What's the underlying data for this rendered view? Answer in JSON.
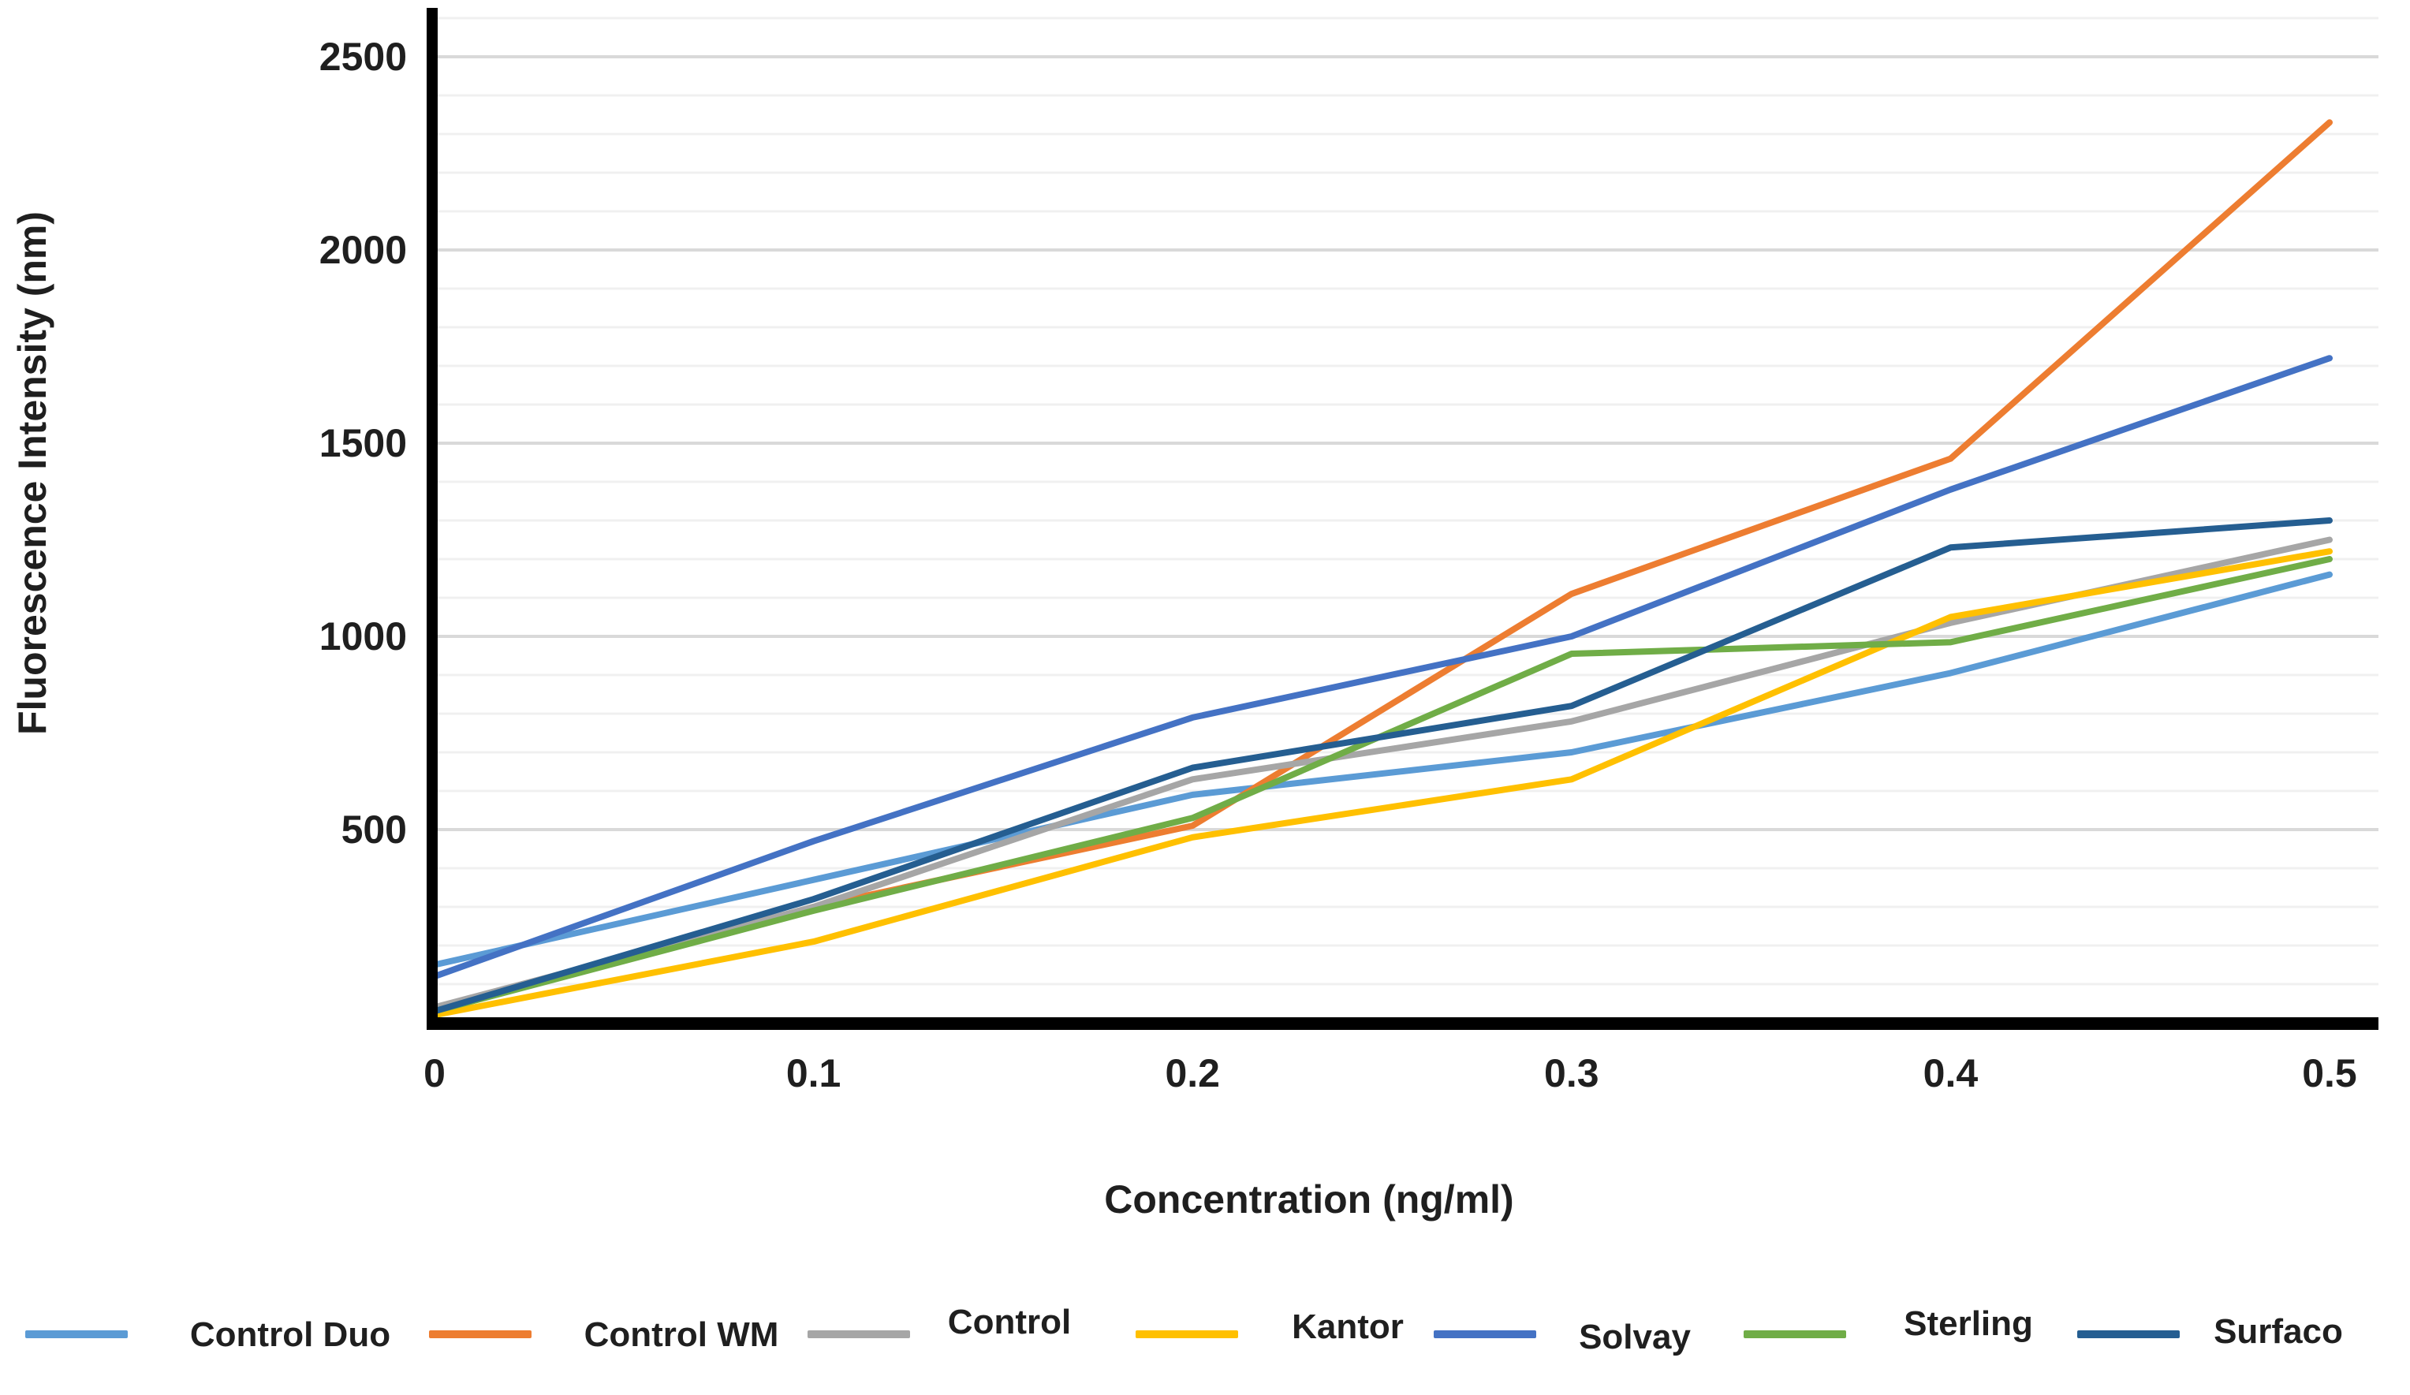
{
  "chart_data": {
    "type": "line",
    "title": "",
    "xlabel": "Concentration (ng/ml)",
    "ylabel": "Fluorescence Intensity (nm)",
    "x": [
      0,
      0.1,
      0.2,
      0.3,
      0.4,
      0.5
    ],
    "x_tick_labels": [
      "0",
      "0.1",
      "0.2",
      "0.3",
      "0.4",
      "0.5"
    ],
    "y_ticks": [
      500,
      1000,
      1500,
      2000,
      2500
    ],
    "y_tick_labels": [
      "500",
      "1000",
      "1500",
      "2000",
      "2500"
    ],
    "ylim": [
      0,
      2600
    ],
    "xlim": [
      0,
      0.5
    ],
    "grid": {
      "minor_step": 100,
      "major_step": 500,
      "minor_color": "#f0f0f0",
      "major_color": "#d9d9d9"
    },
    "axis_color": "#000000",
    "legend_position": "bottom",
    "series": [
      {
        "name": "Control Duo",
        "color": "#5B9BD5",
        "values": [
          150,
          370,
          590,
          700,
          905,
          1160
        ]
      },
      {
        "name": "Control WM",
        "color": "#ED7D31",
        "values": [
          30,
          300,
          510,
          1110,
          1460,
          2330
        ]
      },
      {
        "name": "Control",
        "color": "#A6A6A6",
        "values": [
          40,
          300,
          630,
          780,
          1035,
          1250
        ]
      },
      {
        "name": "Kantor",
        "color": "#FFC000",
        "values": [
          20,
          210,
          480,
          630,
          1050,
          1220
        ]
      },
      {
        "name": "Solvay",
        "color": "#4472C4",
        "values": [
          120,
          470,
          790,
          1000,
          1380,
          1720
        ]
      },
      {
        "name": "Sterling",
        "color": "#70AD47",
        "values": [
          30,
          290,
          530,
          955,
          985,
          1200
        ]
      },
      {
        "name": "Surfaco",
        "color": "#255E91",
        "values": [
          30,
          320,
          660,
          820,
          1230,
          1300
        ]
      }
    ]
  }
}
